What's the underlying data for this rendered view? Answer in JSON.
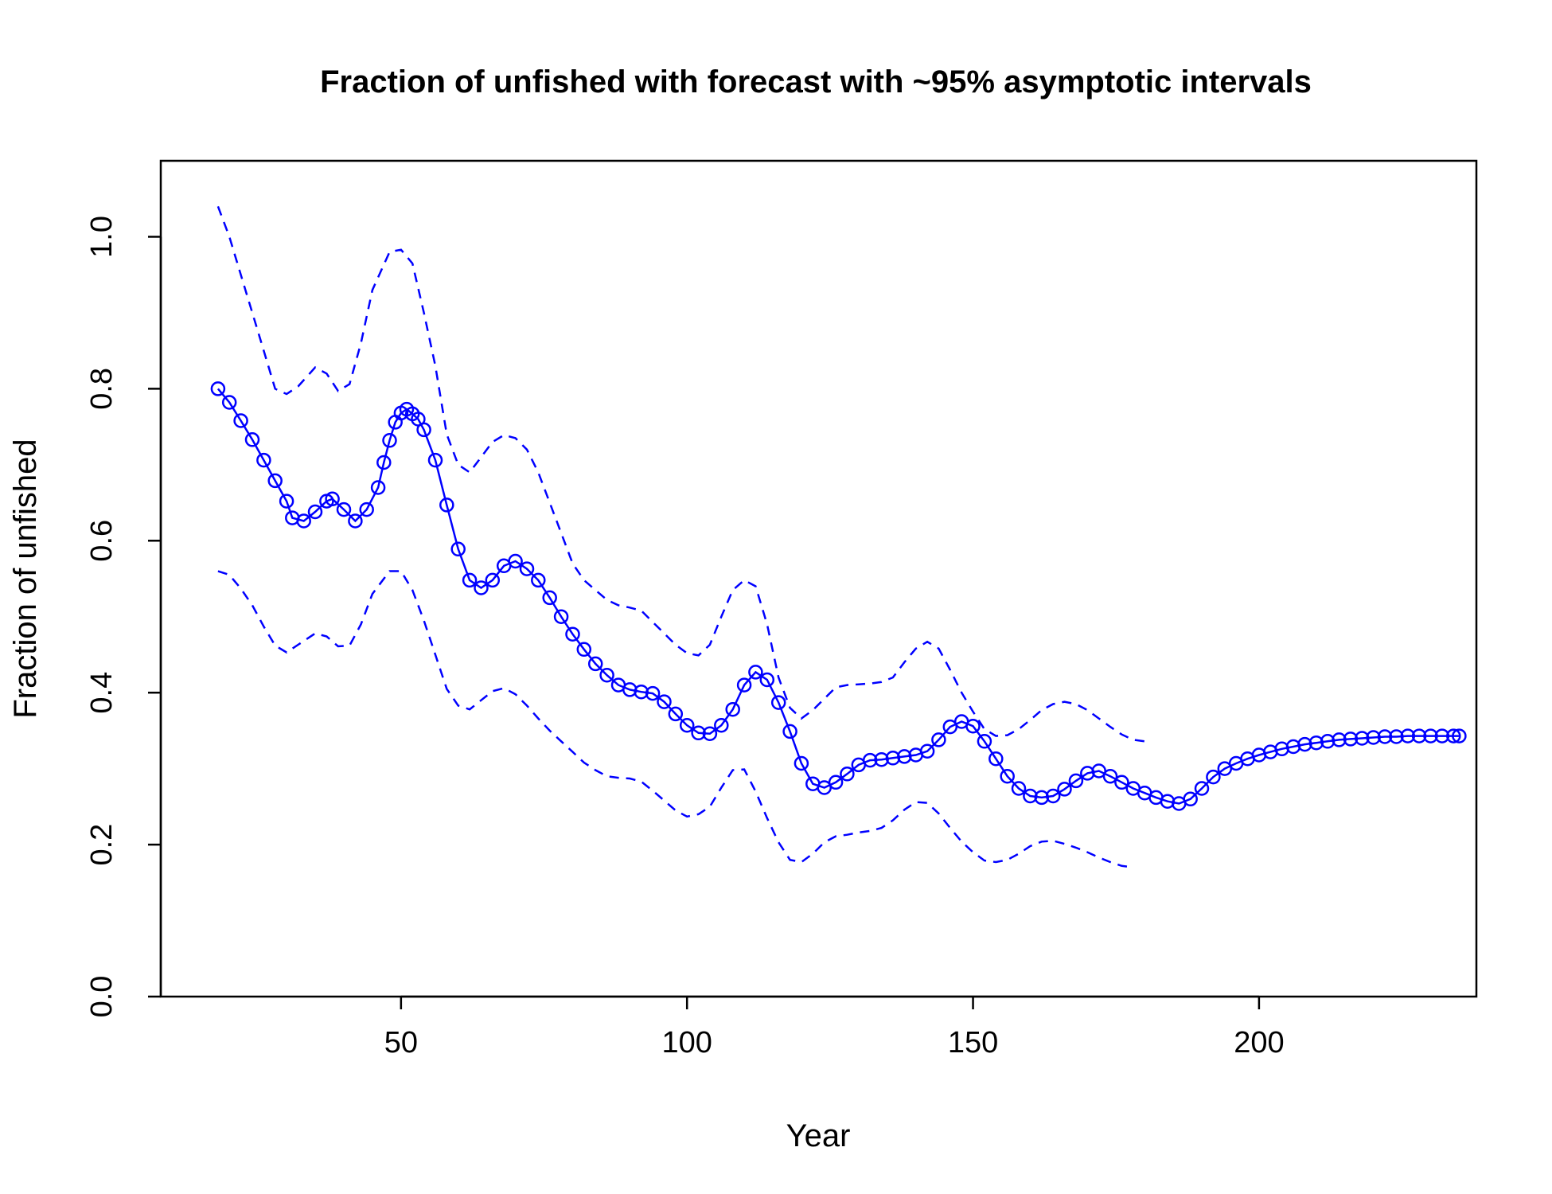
{
  "chart_data": {
    "type": "line",
    "title": "Fraction of unfished with forecast with ~95% asymptotic intervals",
    "xlabel": "Year",
    "ylabel": "Fraction of unfished",
    "xlim": [
      8,
      238
    ],
    "ylim": [
      0,
      1.1
    ],
    "xticks": [
      50,
      100,
      150,
      200
    ],
    "xtick_labels": [
      "50",
      "100",
      "150",
      "200"
    ],
    "yticks": [
      0.0,
      0.2,
      0.4,
      0.6,
      0.8,
      1.0
    ],
    "ytick_labels": [
      "0.0",
      "0.2",
      "0.4",
      "0.6",
      "0.8",
      "1.0"
    ],
    "grid": false,
    "colors": {
      "series": "#0000ff",
      "axes": "#000000"
    },
    "series": [
      {
        "role": "estimate",
        "style": "line-with-circles",
        "points": [
          [
            18,
            0.8
          ],
          [
            20,
            0.782
          ],
          [
            22,
            0.758
          ],
          [
            24,
            0.733
          ],
          [
            26,
            0.706
          ],
          [
            28,
            0.679
          ],
          [
            30,
            0.652
          ],
          [
            31,
            0.63
          ],
          [
            33,
            0.626
          ],
          [
            35,
            0.638
          ],
          [
            37,
            0.652
          ],
          [
            38,
            0.655
          ],
          [
            40,
            0.641
          ],
          [
            42,
            0.626
          ],
          [
            44,
            0.641
          ],
          [
            46,
            0.67
          ],
          [
            47,
            0.703
          ],
          [
            48,
            0.732
          ],
          [
            49,
            0.756
          ],
          [
            50,
            0.768
          ],
          [
            51,
            0.773
          ],
          [
            52,
            0.767
          ],
          [
            53,
            0.76
          ],
          [
            54,
            0.746
          ],
          [
            56,
            0.706
          ],
          [
            58,
            0.647
          ],
          [
            60,
            0.589
          ],
          [
            62,
            0.548
          ],
          [
            64,
            0.538
          ],
          [
            66,
            0.548
          ],
          [
            68,
            0.567
          ],
          [
            70,
            0.573
          ],
          [
            72,
            0.563
          ],
          [
            74,
            0.548
          ],
          [
            76,
            0.525
          ],
          [
            78,
            0.5
          ],
          [
            80,
            0.477
          ],
          [
            82,
            0.457
          ],
          [
            84,
            0.438
          ],
          [
            86,
            0.423
          ],
          [
            88,
            0.41
          ],
          [
            90,
            0.404
          ],
          [
            92,
            0.401
          ],
          [
            94,
            0.399
          ],
          [
            96,
            0.388
          ],
          [
            98,
            0.372
          ],
          [
            100,
            0.357
          ],
          [
            102,
            0.347
          ],
          [
            104,
            0.346
          ],
          [
            106,
            0.357
          ],
          [
            108,
            0.378
          ],
          [
            110,
            0.41
          ],
          [
            112,
            0.427
          ],
          [
            114,
            0.417
          ],
          [
            116,
            0.387
          ],
          [
            118,
            0.349
          ],
          [
            120,
            0.307
          ],
          [
            122,
            0.28
          ],
          [
            124,
            0.275
          ],
          [
            126,
            0.282
          ],
          [
            128,
            0.293
          ],
          [
            130,
            0.305
          ],
          [
            132,
            0.311
          ],
          [
            134,
            0.312
          ],
          [
            136,
            0.314
          ],
          [
            138,
            0.316
          ],
          [
            140,
            0.318
          ],
          [
            142,
            0.323
          ],
          [
            144,
            0.338
          ],
          [
            146,
            0.355
          ],
          [
            148,
            0.362
          ],
          [
            150,
            0.356
          ],
          [
            152,
            0.336
          ],
          [
            154,
            0.313
          ],
          [
            156,
            0.29
          ],
          [
            158,
            0.274
          ],
          [
            160,
            0.264
          ],
          [
            162,
            0.262
          ],
          [
            164,
            0.264
          ],
          [
            166,
            0.273
          ],
          [
            168,
            0.284
          ],
          [
            170,
            0.294
          ],
          [
            172,
            0.297
          ],
          [
            174,
            0.29
          ],
          [
            176,
            0.282
          ],
          [
            178,
            0.274
          ],
          [
            180,
            0.268
          ],
          [
            182,
            0.262
          ],
          [
            184,
            0.257
          ],
          [
            186,
            0.254
          ],
          [
            188,
            0.26
          ],
          [
            190,
            0.274
          ],
          [
            192,
            0.289
          ],
          [
            194,
            0.3
          ],
          [
            196,
            0.307
          ],
          [
            198,
            0.313
          ],
          [
            200,
            0.318
          ],
          [
            202,
            0.322
          ],
          [
            204,
            0.326
          ],
          [
            206,
            0.329
          ],
          [
            208,
            0.332
          ],
          [
            210,
            0.334
          ],
          [
            212,
            0.336
          ],
          [
            214,
            0.338
          ],
          [
            216,
            0.339
          ],
          [
            218,
            0.34
          ],
          [
            220,
            0.341
          ],
          [
            222,
            0.342
          ],
          [
            224,
            0.342
          ],
          [
            226,
            0.343
          ],
          [
            228,
            0.343
          ],
          [
            230,
            0.343
          ],
          [
            232,
            0.343
          ],
          [
            234,
            0.343
          ],
          [
            235,
            0.343
          ]
        ]
      },
      {
        "role": "upper-interval",
        "style": "dashed",
        "points": [
          [
            18,
            1.04
          ],
          [
            20,
            1.0
          ],
          [
            22,
            0.95
          ],
          [
            24,
            0.9
          ],
          [
            26,
            0.85
          ],
          [
            28,
            0.8
          ],
          [
            30,
            0.793
          ],
          [
            32,
            0.803
          ],
          [
            35,
            0.828
          ],
          [
            37,
            0.82
          ],
          [
            39,
            0.797
          ],
          [
            41,
            0.806
          ],
          [
            43,
            0.86
          ],
          [
            45,
            0.93
          ],
          [
            48,
            0.98
          ],
          [
            50,
            0.983
          ],
          [
            52,
            0.965
          ],
          [
            54,
            0.9
          ],
          [
            56,
            0.83
          ],
          [
            58,
            0.74
          ],
          [
            60,
            0.7
          ],
          [
            62,
            0.69
          ],
          [
            64,
            0.71
          ],
          [
            66,
            0.73
          ],
          [
            68,
            0.739
          ],
          [
            70,
            0.735
          ],
          [
            72,
            0.72
          ],
          [
            74,
            0.69
          ],
          [
            76,
            0.65
          ],
          [
            78,
            0.61
          ],
          [
            80,
            0.57
          ],
          [
            82,
            0.548
          ],
          [
            84,
            0.535
          ],
          [
            86,
            0.522
          ],
          [
            88,
            0.515
          ],
          [
            90,
            0.512
          ],
          [
            92,
            0.508
          ],
          [
            94,
            0.493
          ],
          [
            96,
            0.478
          ],
          [
            98,
            0.463
          ],
          [
            100,
            0.452
          ],
          [
            102,
            0.449
          ],
          [
            104,
            0.463
          ],
          [
            106,
            0.5
          ],
          [
            108,
            0.535
          ],
          [
            110,
            0.548
          ],
          [
            112,
            0.54
          ],
          [
            114,
            0.49
          ],
          [
            116,
            0.42
          ],
          [
            118,
            0.38
          ],
          [
            120,
            0.366
          ],
          [
            122,
            0.377
          ],
          [
            124,
            0.392
          ],
          [
            126,
            0.407
          ],
          [
            128,
            0.41
          ],
          [
            130,
            0.411
          ],
          [
            132,
            0.412
          ],
          [
            134,
            0.414
          ],
          [
            136,
            0.42
          ],
          [
            138,
            0.44
          ],
          [
            140,
            0.458
          ],
          [
            142,
            0.467
          ],
          [
            144,
            0.458
          ],
          [
            146,
            0.43
          ],
          [
            148,
            0.4
          ],
          [
            150,
            0.375
          ],
          [
            152,
            0.352
          ],
          [
            154,
            0.343
          ],
          [
            156,
            0.344
          ],
          [
            158,
            0.352
          ],
          [
            160,
            0.364
          ],
          [
            162,
            0.377
          ],
          [
            164,
            0.385
          ],
          [
            166,
            0.388
          ],
          [
            168,
            0.385
          ],
          [
            170,
            0.377
          ],
          [
            172,
            0.366
          ],
          [
            174,
            0.355
          ],
          [
            176,
            0.345
          ],
          [
            178,
            0.338
          ],
          [
            180,
            0.336
          ]
        ]
      },
      {
        "role": "lower-interval",
        "style": "dashed",
        "points": [
          [
            18,
            0.56
          ],
          [
            20,
            0.555
          ],
          [
            22,
            0.537
          ],
          [
            24,
            0.515
          ],
          [
            26,
            0.487
          ],
          [
            28,
            0.462
          ],
          [
            30,
            0.453
          ],
          [
            32,
            0.463
          ],
          [
            35,
            0.478
          ],
          [
            37,
            0.474
          ],
          [
            39,
            0.461
          ],
          [
            41,
            0.462
          ],
          [
            43,
            0.49
          ],
          [
            45,
            0.53
          ],
          [
            48,
            0.56
          ],
          [
            50,
            0.56
          ],
          [
            52,
            0.535
          ],
          [
            54,
            0.495
          ],
          [
            56,
            0.45
          ],
          [
            58,
            0.405
          ],
          [
            60,
            0.383
          ],
          [
            62,
            0.378
          ],
          [
            64,
            0.39
          ],
          [
            66,
            0.402
          ],
          [
            68,
            0.406
          ],
          [
            70,
            0.398
          ],
          [
            72,
            0.383
          ],
          [
            74,
            0.366
          ],
          [
            76,
            0.35
          ],
          [
            78,
            0.336
          ],
          [
            80,
            0.322
          ],
          [
            82,
            0.308
          ],
          [
            84,
            0.298
          ],
          [
            86,
            0.29
          ],
          [
            88,
            0.288
          ],
          [
            90,
            0.287
          ],
          [
            92,
            0.283
          ],
          [
            94,
            0.271
          ],
          [
            96,
            0.258
          ],
          [
            98,
            0.245
          ],
          [
            100,
            0.237
          ],
          [
            102,
            0.24
          ],
          [
            104,
            0.25
          ],
          [
            106,
            0.275
          ],
          [
            108,
            0.298
          ],
          [
            110,
            0.299
          ],
          [
            112,
            0.27
          ],
          [
            114,
            0.235
          ],
          [
            116,
            0.203
          ],
          [
            118,
            0.18
          ],
          [
            120,
            0.177
          ],
          [
            122,
            0.188
          ],
          [
            124,
            0.203
          ],
          [
            126,
            0.211
          ],
          [
            128,
            0.213
          ],
          [
            130,
            0.216
          ],
          [
            132,
            0.218
          ],
          [
            134,
            0.222
          ],
          [
            136,
            0.232
          ],
          [
            138,
            0.246
          ],
          [
            140,
            0.256
          ],
          [
            142,
            0.255
          ],
          [
            144,
            0.241
          ],
          [
            146,
            0.222
          ],
          [
            148,
            0.204
          ],
          [
            150,
            0.19
          ],
          [
            152,
            0.179
          ],
          [
            154,
            0.177
          ],
          [
            156,
            0.18
          ],
          [
            158,
            0.188
          ],
          [
            160,
            0.198
          ],
          [
            162,
            0.204
          ],
          [
            164,
            0.205
          ],
          [
            166,
            0.201
          ],
          [
            168,
            0.196
          ],
          [
            170,
            0.19
          ],
          [
            172,
            0.183
          ],
          [
            174,
            0.177
          ],
          [
            176,
            0.172
          ],
          [
            178,
            0.17
          ]
        ]
      }
    ]
  }
}
